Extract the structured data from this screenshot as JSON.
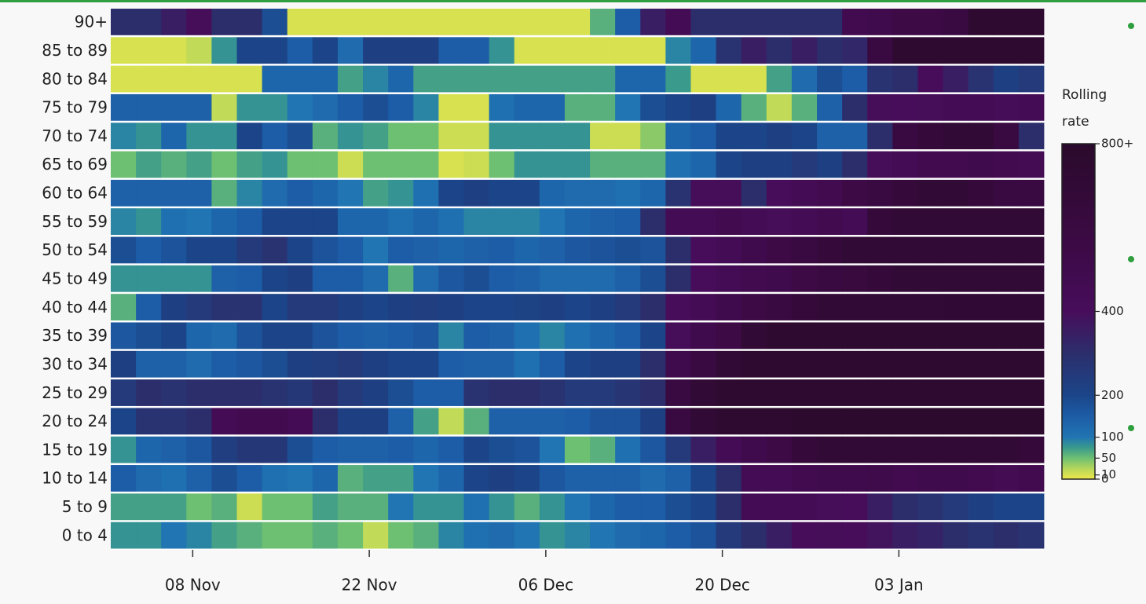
{
  "chart_data": {
    "type": "heatmap",
    "colorbar_title": "Rolling rate",
    "y": [
      "90+",
      "85 to 89",
      "80 to 84",
      "75 to 79",
      "70 to 74",
      "65 to 69",
      "60 to 64",
      "55 to 59",
      "50 to 54",
      "45 to 49",
      "40 to 44",
      "35 to 39",
      "30 to 34",
      "25 to 29",
      "20 to 24",
      "15 to 19",
      "10 to 14",
      "5 to 9",
      "0 to 4"
    ],
    "x": [
      2.5,
      4.5,
      6.5,
      8.5,
      10.5,
      12.5,
      14.5,
      16.5,
      18.5,
      20.5,
      22.5,
      24.5,
      26.5,
      28.5,
      30.5,
      32.5,
      34.5,
      36.5,
      38.5,
      40.5,
      42.5,
      44.5,
      46.5,
      48.5,
      50.5,
      52.5,
      54.5,
      56.5,
      58.5,
      60.5,
      62.5,
      64.5,
      66.5,
      68.5,
      70.5,
      72.5,
      74.5
    ],
    "xlim": [
      1.5,
      75.5
    ],
    "xticks": [
      {
        "value": 8,
        "label": "08 Nov"
      },
      {
        "value": 22,
        "label": "22 Nov"
      },
      {
        "value": 36,
        "label": "06 Dec"
      },
      {
        "value": 50,
        "label": "20 Dec"
      },
      {
        "value": 64,
        "label": "03 Jan"
      }
    ],
    "z": [
      [
        300,
        300,
        350,
        420,
        300,
        300,
        180,
        10,
        10,
        10,
        10,
        10,
        10,
        10,
        10,
        10,
        10,
        10,
        10,
        60,
        150,
        350,
        450,
        300,
        300,
        300,
        300,
        300,
        300,
        480,
        500,
        550,
        550,
        600,
        750,
        750,
        750
      ],
      [
        10,
        10,
        10,
        20,
        80,
        200,
        200,
        150,
        200,
        120,
        220,
        220,
        220,
        150,
        150,
        80,
        10,
        10,
        10,
        10,
        10,
        10,
        90,
        130,
        280,
        350,
        300,
        350,
        300,
        320,
        600,
        750,
        750,
        750,
        750,
        750,
        750
      ],
      [
        10,
        10,
        10,
        10,
        10,
        10,
        130,
        130,
        130,
        70,
        90,
        130,
        70,
        70,
        70,
        70,
        70,
        70,
        70,
        70,
        130,
        130,
        75,
        10,
        10,
        10,
        70,
        120,
        180,
        150,
        280,
        300,
        400,
        350,
        280,
        220,
        250
      ],
      [
        140,
        140,
        140,
        140,
        20,
        80,
        80,
        100,
        120,
        150,
        180,
        150,
        90,
        10,
        10,
        110,
        130,
        130,
        60,
        60,
        100,
        180,
        200,
        220,
        130,
        60,
        20,
        60,
        140,
        300,
        420,
        400,
        420,
        450,
        450,
        430,
        450
      ],
      [
        90,
        80,
        130,
        80,
        80,
        200,
        150,
        180,
        60,
        80,
        70,
        50,
        50,
        15,
        15,
        80,
        80,
        80,
        80,
        15,
        15,
        40,
        130,
        150,
        200,
        200,
        220,
        200,
        140,
        140,
        300,
        600,
        650,
        700,
        700,
        600,
        300
      ],
      [
        50,
        70,
        60,
        70,
        50,
        70,
        80,
        50,
        50,
        15,
        50,
        50,
        50,
        10,
        15,
        50,
        80,
        80,
        80,
        60,
        60,
        60,
        110,
        130,
        200,
        220,
        220,
        250,
        220,
        300,
        420,
        450,
        480,
        480,
        500,
        480,
        460
      ],
      [
        140,
        140,
        140,
        140,
        60,
        90,
        120,
        150,
        130,
        100,
        70,
        80,
        110,
        200,
        220,
        200,
        200,
        130,
        120,
        120,
        110,
        130,
        280,
        420,
        420,
        300,
        400,
        450,
        480,
        550,
        600,
        650,
        700,
        700,
        650,
        600,
        600
      ],
      [
        90,
        80,
        110,
        100,
        130,
        150,
        200,
        200,
        200,
        130,
        130,
        110,
        130,
        110,
        90,
        90,
        90,
        100,
        130,
        140,
        150,
        300,
        450,
        450,
        480,
        450,
        420,
        450,
        480,
        450,
        650,
        700,
        700,
        700,
        700,
        700,
        700
      ],
      [
        180,
        150,
        170,
        200,
        200,
        250,
        280,
        200,
        170,
        150,
        100,
        150,
        140,
        130,
        140,
        150,
        130,
        140,
        160,
        170,
        180,
        170,
        300,
        400,
        450,
        500,
        550,
        600,
        650,
        700,
        700,
        700,
        700,
        700,
        700,
        700,
        700
      ],
      [
        80,
        80,
        80,
        80,
        140,
        150,
        200,
        220,
        150,
        150,
        120,
        60,
        120,
        160,
        180,
        150,
        140,
        120,
        120,
        120,
        140,
        180,
        300,
        400,
        450,
        480,
        500,
        550,
        600,
        620,
        650,
        700,
        700,
        700,
        700,
        700,
        700
      ],
      [
        60,
        150,
        220,
        250,
        280,
        280,
        200,
        250,
        250,
        220,
        200,
        220,
        230,
        220,
        200,
        200,
        210,
        220,
        200,
        220,
        250,
        300,
        400,
        450,
        500,
        550,
        600,
        650,
        700,
        700,
        700,
        700,
        700,
        720,
        720,
        720,
        720
      ],
      [
        160,
        180,
        200,
        130,
        120,
        170,
        200,
        200,
        170,
        150,
        140,
        150,
        160,
        90,
        150,
        140,
        110,
        90,
        110,
        130,
        150,
        200,
        420,
        500,
        550,
        700,
        750,
        750,
        750,
        750,
        750,
        750,
        750,
        750,
        750,
        750,
        750
      ],
      [
        220,
        140,
        140,
        120,
        150,
        160,
        180,
        220,
        230,
        250,
        220,
        200,
        200,
        150,
        140,
        140,
        110,
        150,
        200,
        220,
        220,
        300,
        500,
        600,
        700,
        750,
        750,
        750,
        750,
        750,
        750,
        750,
        750,
        750,
        750,
        750,
        750
      ],
      [
        250,
        300,
        280,
        300,
        300,
        300,
        280,
        260,
        300,
        250,
        220,
        180,
        150,
        150,
        280,
        300,
        300,
        280,
        250,
        250,
        270,
        300,
        600,
        700,
        750,
        750,
        750,
        750,
        750,
        750,
        750,
        750,
        750,
        750,
        750,
        750,
        750
      ],
      [
        200,
        280,
        280,
        300,
        450,
        480,
        480,
        450,
        300,
        220,
        220,
        140,
        70,
        20,
        60,
        140,
        140,
        140,
        150,
        170,
        170,
        220,
        600,
        700,
        750,
        750,
        750,
        780,
        780,
        780,
        780,
        780,
        780,
        780,
        780,
        780,
        780
      ],
      [
        80,
        130,
        140,
        160,
        230,
        260,
        260,
        180,
        150,
        140,
        140,
        150,
        130,
        150,
        200,
        180,
        170,
        100,
        50,
        60,
        110,
        160,
        250,
        350,
        450,
        500,
        550,
        650,
        700,
        700,
        700,
        700,
        700,
        700,
        700,
        700,
        650
      ],
      [
        150,
        120,
        110,
        140,
        180,
        150,
        110,
        100,
        130,
        60,
        70,
        70,
        100,
        130,
        200,
        220,
        200,
        160,
        140,
        140,
        140,
        120,
        140,
        200,
        300,
        450,
        450,
        480,
        500,
        500,
        520,
        480,
        500,
        500,
        480,
        460,
        480
      ],
      [
        70,
        70,
        70,
        50,
        60,
        15,
        50,
        50,
        70,
        60,
        60,
        100,
        80,
        80,
        110,
        80,
        60,
        80,
        100,
        130,
        150,
        150,
        180,
        200,
        300,
        450,
        450,
        450,
        420,
        400,
        350,
        300,
        280,
        250,
        220,
        200,
        200
      ],
      [
        80,
        80,
        100,
        90,
        70,
        60,
        50,
        50,
        60,
        50,
        20,
        50,
        60,
        90,
        110,
        120,
        100,
        80,
        90,
        100,
        120,
        130,
        150,
        170,
        250,
        300,
        350,
        400,
        420,
        400,
        380,
        350,
        330,
        300,
        280,
        300,
        280
      ]
    ],
    "clim": [
      0,
      800
    ],
    "cticks": [
      0,
      10,
      50,
      100,
      200,
      {
        "value": 800,
        "label": "800+"
      },
      400
    ],
    "colorscale": [
      [
        0,
        "#efe84a"
      ],
      [
        25,
        "#b5d65a"
      ],
      [
        50,
        "#6dbf72"
      ],
      [
        75,
        "#3a9a8c"
      ],
      [
        100,
        "#2075b2"
      ],
      [
        150,
        "#1d5ca6"
      ],
      [
        200,
        "#1b4588"
      ],
      [
        300,
        "#2c2e6c"
      ],
      [
        400,
        "#470d5b"
      ],
      [
        550,
        "#3d0a46"
      ],
      [
        800,
        "#2a0a2b"
      ]
    ]
  }
}
